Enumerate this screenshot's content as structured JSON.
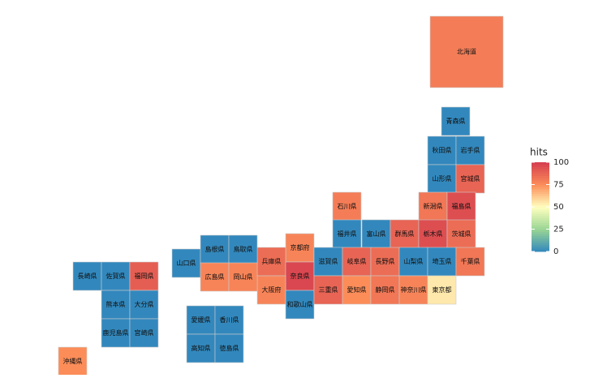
{
  "map": {
    "legend_title": "hits",
    "color_lim": [
      0,
      100
    ],
    "color_ticks": [
      0,
      25,
      50,
      75,
      100
    ],
    "prefectures": [
      {
        "name": "北海道",
        "hits": 80
      },
      {
        "name": "青森県",
        "hits": 0
      },
      {
        "name": "秋田県",
        "hits": 0
      },
      {
        "name": "岩手県",
        "hits": 0
      },
      {
        "name": "山形県",
        "hits": 0
      },
      {
        "name": "宮城県",
        "hits": 88
      },
      {
        "name": "新潟県",
        "hits": 82
      },
      {
        "name": "福島県",
        "hits": 95
      },
      {
        "name": "石川県",
        "hits": 80
      },
      {
        "name": "福井県",
        "hits": 0
      },
      {
        "name": "富山県",
        "hits": 0
      },
      {
        "name": "群馬県",
        "hits": 88
      },
      {
        "name": "栃木県",
        "hits": 95
      },
      {
        "name": "茨城県",
        "hits": 85
      },
      {
        "name": "京都府",
        "hits": 78
      },
      {
        "name": "兵庫県",
        "hits": 85
      },
      {
        "name": "奈良県",
        "hits": 97
      },
      {
        "name": "大阪府",
        "hits": 78
      },
      {
        "name": "和歌山県",
        "hits": 0
      },
      {
        "name": "滋賀県",
        "hits": 0
      },
      {
        "name": "岐阜県",
        "hits": 88
      },
      {
        "name": "長野県",
        "hits": 85
      },
      {
        "name": "山梨県",
        "hits": 0
      },
      {
        "name": "埼玉県",
        "hits": 0
      },
      {
        "name": "千葉県",
        "hits": 82
      },
      {
        "name": "三重県",
        "hits": 88
      },
      {
        "name": "愛知県",
        "hits": 75
      },
      {
        "name": "静岡県",
        "hits": 82
      },
      {
        "name": "神奈川県",
        "hits": 78
      },
      {
        "name": "東京都",
        "hits": 55
      },
      {
        "name": "山口県",
        "hits": 0
      },
      {
        "name": "島根県",
        "hits": 0
      },
      {
        "name": "鳥取県",
        "hits": 0
      },
      {
        "name": "広島県",
        "hits": 78
      },
      {
        "name": "岡山県",
        "hits": 78
      },
      {
        "name": "長崎県",
        "hits": 0
      },
      {
        "name": "佐賀県",
        "hits": 0
      },
      {
        "name": "福岡県",
        "hits": 90
      },
      {
        "name": "熊本県",
        "hits": 0
      },
      {
        "name": "大分県",
        "hits": 0
      },
      {
        "name": "鹿児島県",
        "hits": 0
      },
      {
        "name": "宮崎県",
        "hits": 0
      },
      {
        "name": "沖縄県",
        "hits": 75
      },
      {
        "name": "愛媛県",
        "hits": 0
      },
      {
        "name": "香川県",
        "hits": 0
      },
      {
        "name": "高知県",
        "hits": 0
      },
      {
        "name": "徳島県",
        "hits": 0
      }
    ]
  }
}
